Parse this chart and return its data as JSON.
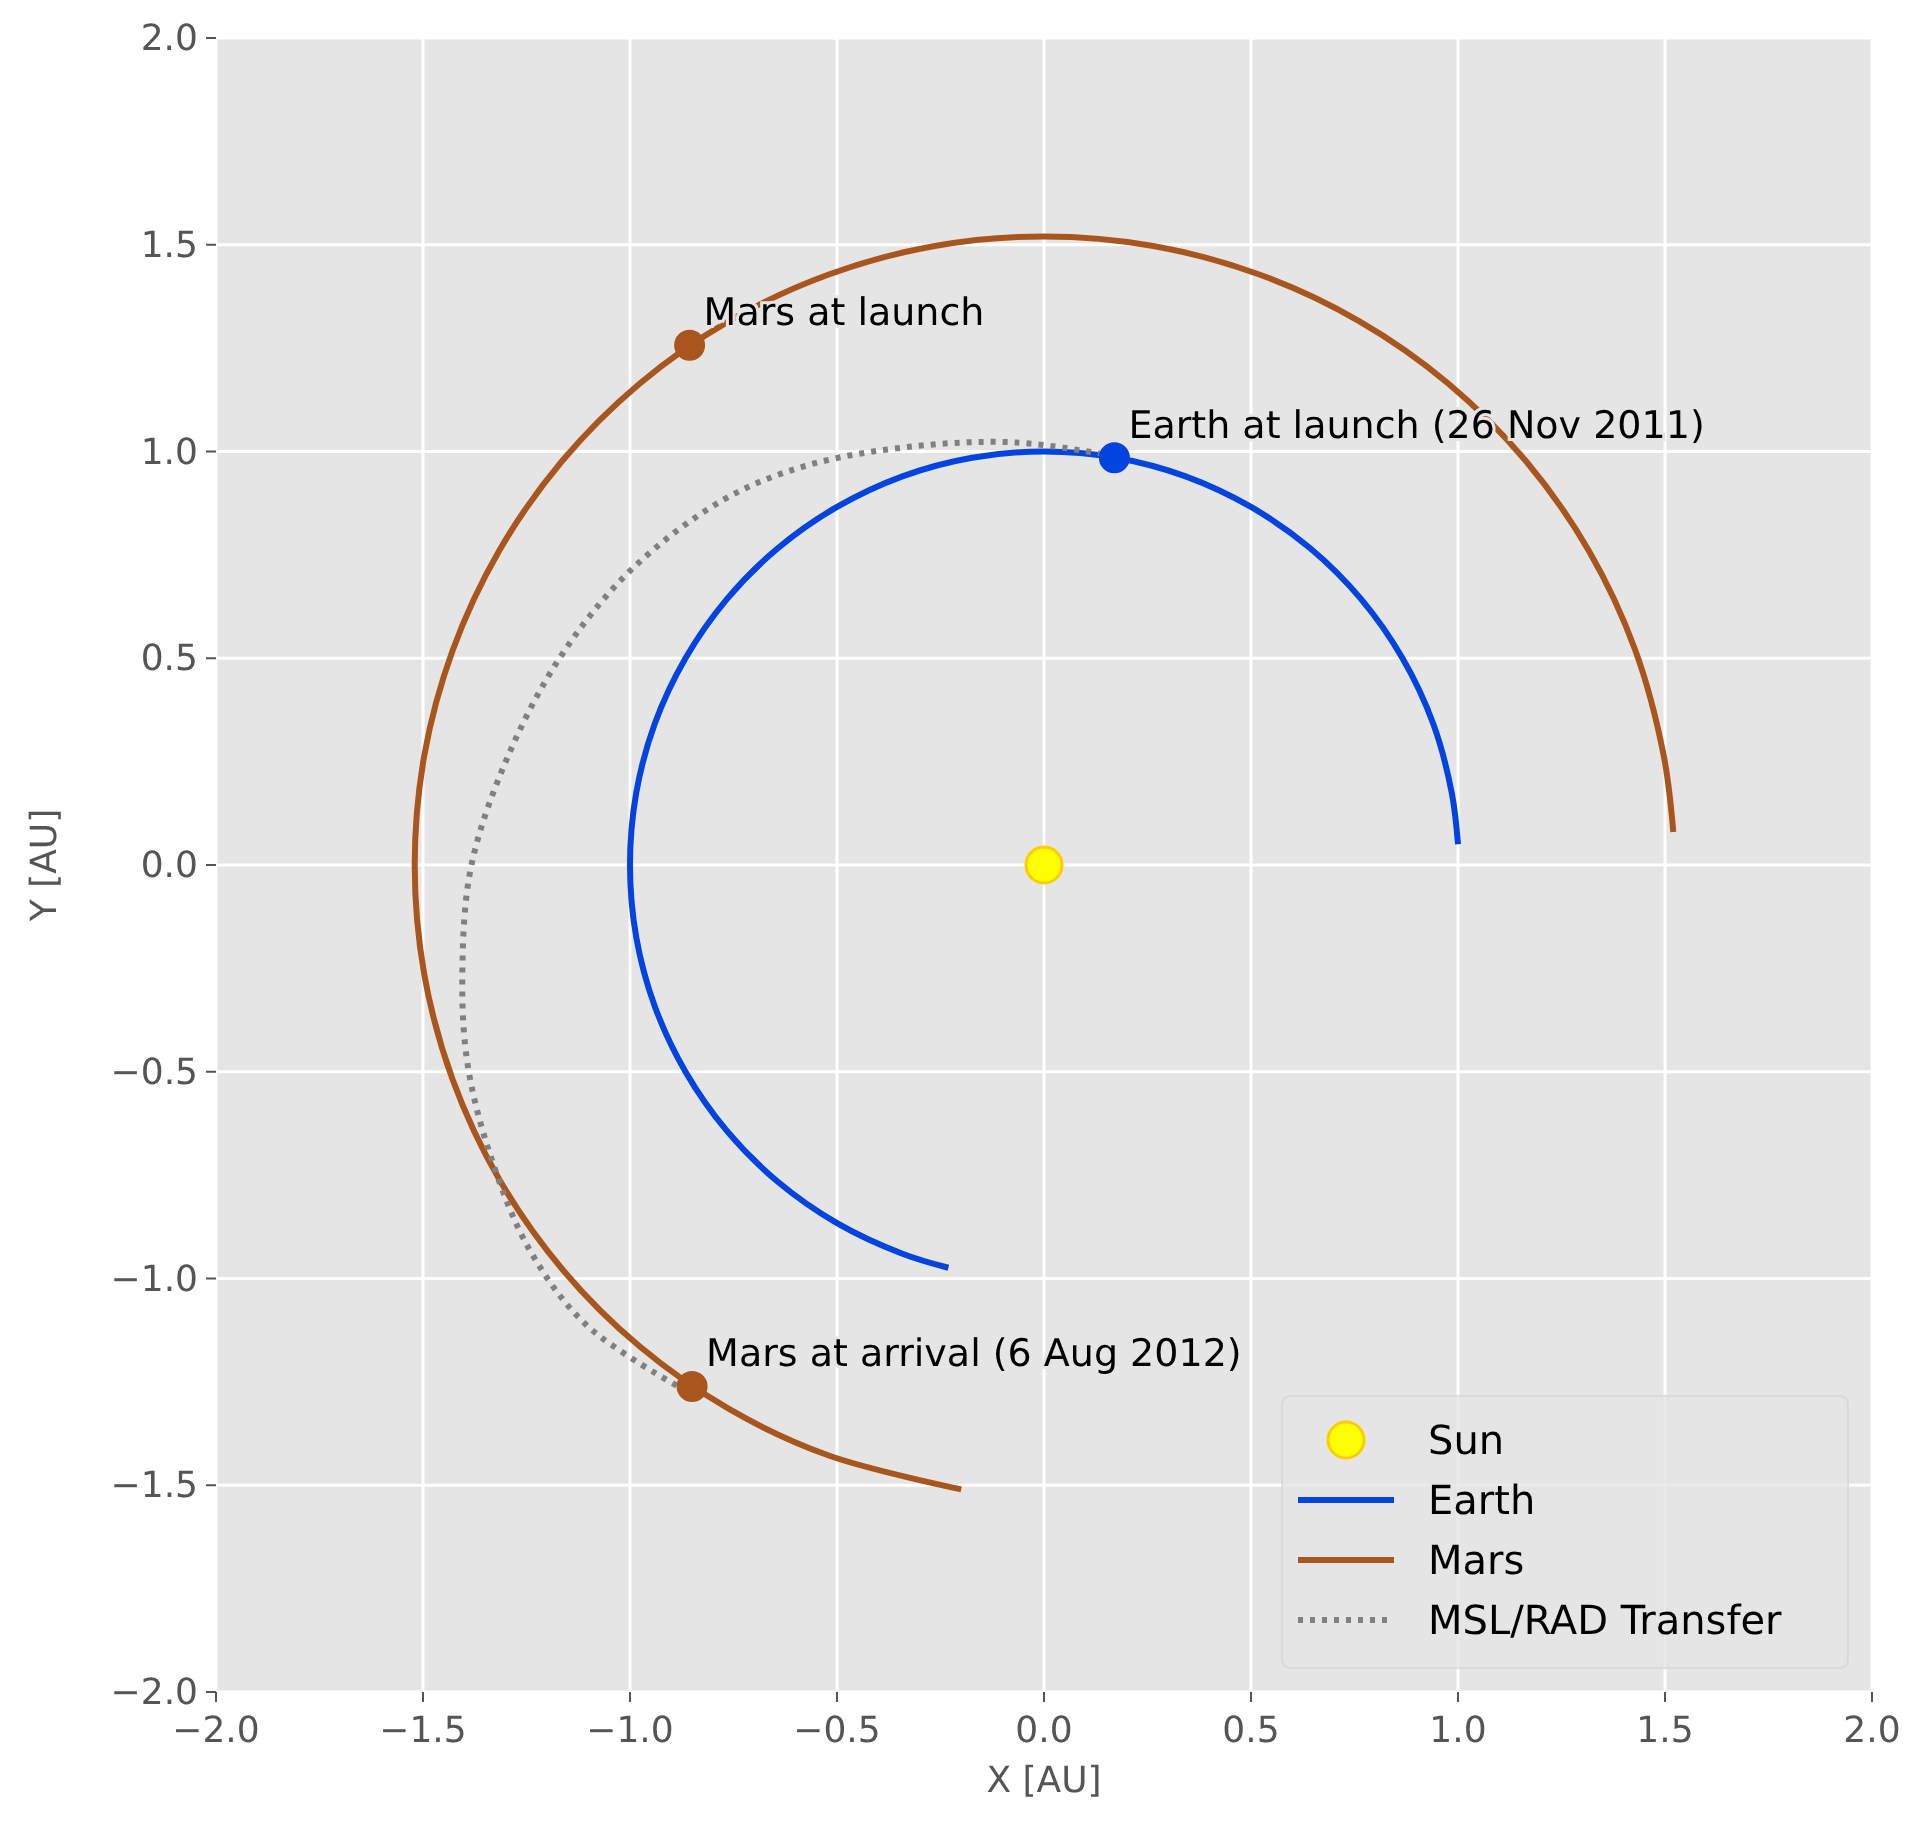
{
  "chart_data": {
    "type": "line",
    "xlabel": "X [AU]",
    "ylabel": "Y [AU]",
    "xlim": [
      -2,
      2
    ],
    "ylim": [
      -2,
      2
    ],
    "xticks": [
      {
        "value": -2,
        "label": "−2.0"
      },
      {
        "value": -1.5,
        "label": "−1.5"
      },
      {
        "value": -1,
        "label": "−1.0"
      },
      {
        "value": -0.5,
        "label": "−0.5"
      },
      {
        "value": 0,
        "label": "0.0"
      },
      {
        "value": 0.5,
        "label": "0.5"
      },
      {
        "value": 1,
        "label": "1.0"
      },
      {
        "value": 1.5,
        "label": "1.5"
      },
      {
        "value": 2,
        "label": "2.0"
      }
    ],
    "yticks": [
      {
        "value": -2,
        "label": "−2.0"
      },
      {
        "value": -1.5,
        "label": "−1.5"
      },
      {
        "value": -1,
        "label": "−1.0"
      },
      {
        "value": -0.5,
        "label": "−0.5"
      },
      {
        "value": 0,
        "label": "0.0"
      },
      {
        "value": 0.5,
        "label": "0.5"
      },
      {
        "value": 1,
        "label": "1.0"
      },
      {
        "value": 1.5,
        "label": "1.5"
      },
      {
        "value": 2,
        "label": "2.0"
      }
    ],
    "grid": true,
    "legend": "bottom right",
    "series": [
      {
        "name": "Sun",
        "type": "scatter",
        "marker": "circle",
        "color": "#ffff00",
        "x": [
          0
        ],
        "values": [
          0
        ]
      },
      {
        "name": "Earth",
        "type": "line",
        "marker": "none",
        "line_style": "solid",
        "color": "#0343df",
        "x": [
          1.0,
          0.985,
          0.94,
          0.866,
          0.766,
          0.643,
          0.5,
          0.342,
          0.174,
          0,
          -0.174,
          -0.342,
          -0.5,
          -0.643,
          -0.766,
          -0.866,
          -0.94,
          -0.985,
          -1,
          -0.985,
          -0.94,
          -0.866,
          -0.766,
          -0.643,
          -0.5,
          -0.342,
          -0.231
        ],
        "values": [
          0.05,
          0.174,
          0.342,
          0.5,
          0.643,
          0.766,
          0.866,
          0.94,
          0.985,
          1,
          0.985,
          0.94,
          0.866,
          0.766,
          0.643,
          0.5,
          0.342,
          0.174,
          0,
          -0.174,
          -0.342,
          -0.5,
          -0.643,
          -0.766,
          -0.866,
          -0.94,
          -0.974
        ]
      },
      {
        "name": "Mars",
        "type": "line",
        "marker": "none",
        "line_style": "solid",
        "color": "#a9561e",
        "x": [
          1.52,
          1.497,
          1.428,
          1.316,
          1.164,
          0.977,
          0.76,
          0.52,
          0.264,
          0,
          -0.264,
          -0.52,
          -0.76,
          -0.977,
          -1.164,
          -1.316,
          -1.428,
          -1.497,
          -1.52,
          -1.497,
          -1.428,
          -1.316,
          -1.164,
          -0.977,
          -0.76,
          -0.52,
          -0.2
        ],
        "values": [
          0.08,
          0.264,
          0.52,
          0.76,
          0.977,
          1.164,
          1.316,
          1.428,
          1.497,
          1.52,
          1.497,
          1.428,
          1.316,
          1.164,
          0.977,
          0.76,
          0.52,
          0.264,
          0,
          -0.264,
          -0.52,
          -0.76,
          -0.977,
          -1.164,
          -1.316,
          -1.428,
          -1.51
        ]
      },
      {
        "name": "MSL/RAD Transfer",
        "type": "line",
        "marker": "none",
        "line_style": "dotted",
        "color": "#808080",
        "x": [
          0.142,
          -0.07,
          -0.31,
          -0.57,
          -0.773,
          -0.994,
          -1.161,
          -1.29,
          -1.383,
          -1.405,
          -1.392,
          -1.336,
          -1.244,
          -1.105,
          -0.884
        ],
        "values": [
          0.994,
          1.022,
          1.013,
          0.967,
          0.884,
          0.717,
          0.514,
          0.274,
          0,
          -0.262,
          -0.484,
          -0.706,
          -0.928,
          -1.113,
          -1.261
        ]
      },
      {
        "type": "scatter",
        "marker": "circle",
        "color": "#0343df",
        "x": [
          0.17
        ],
        "values": [
          0.985
        ]
      },
      {
        "type": "scatter",
        "marker": "circle",
        "color": "#a9561e",
        "x": [
          -0.856,
          -0.85
        ],
        "values": [
          1.257,
          -1.261
        ]
      }
    ],
    "annotations": [
      {
        "text": "Mars at launch",
        "x": -0.856,
        "y": 1.257
      },
      {
        "text": "Earth at launch (26 Nov 2011)",
        "x": 0.17,
        "y": 0.985
      },
      {
        "text": "Mars at arrival (6 Aug 2012)",
        "x": -0.85,
        "y": -1.261
      }
    ]
  }
}
